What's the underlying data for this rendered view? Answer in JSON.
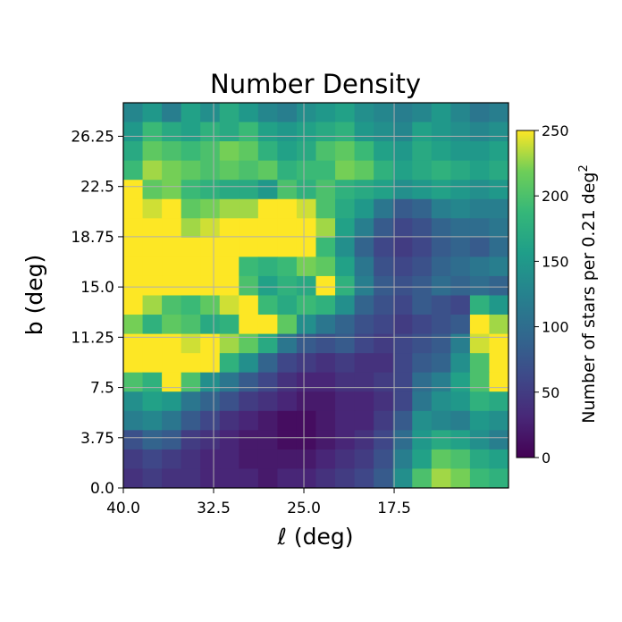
{
  "chart_data": {
    "type": "heatmap",
    "title": "Number Density",
    "xlabel": "ℓ (deg)",
    "ylabel": "b (deg)",
    "xlim": [
      40.0,
      8.0
    ],
    "ylim": [
      0.0,
      28.75
    ],
    "x_ticks": [
      "40.0",
      "32.5",
      "25.0",
      "17.5"
    ],
    "x_tick_values": [
      40.0,
      32.5,
      25.0,
      17.5
    ],
    "y_ticks": [
      "0.0",
      "3.75",
      "7.5",
      "11.25",
      "15.0",
      "18.75",
      "22.5",
      "26.25"
    ],
    "y_tick_values": [
      0.0,
      3.75,
      7.5,
      11.25,
      15.0,
      18.75,
      22.5,
      26.25
    ],
    "grid": true,
    "colormap": "viridis",
    "colorbar": {
      "label": "Number of stars per 0.21 deg",
      "label_superscript": "2",
      "range": [
        0,
        250
      ],
      "ticks": [
        "0",
        "50",
        "100",
        "150",
        "200",
        "250"
      ],
      "tick_values": [
        0,
        50,
        100,
        150,
        200,
        250
      ]
    },
    "grid_x_step": 1.6,
    "grid_y_step": 1.4375,
    "values": [
      [
        130,
        150,
        120,
        160,
        140,
        170,
        150,
        130,
        120,
        140,
        150,
        160,
        140,
        130,
        120,
        130,
        150,
        130,
        110,
        120
      ],
      [
        150,
        190,
        170,
        160,
        180,
        170,
        190,
        160,
        150,
        160,
        170,
        180,
        150,
        140,
        130,
        160,
        150,
        140,
        130,
        140
      ],
      [
        170,
        210,
        200,
        190,
        200,
        220,
        210,
        180,
        160,
        170,
        200,
        210,
        190,
        160,
        150,
        170,
        160,
        150,
        150,
        160
      ],
      [
        190,
        230,
        220,
        210,
        200,
        210,
        200,
        210,
        180,
        190,
        190,
        220,
        210,
        180,
        160,
        170,
        180,
        170,
        160,
        170
      ],
      [
        250,
        210,
        220,
        190,
        180,
        170,
        170,
        150,
        200,
        180,
        200,
        180,
        170,
        160,
        140,
        150,
        160,
        150,
        140,
        150
      ],
      [
        250,
        240,
        250,
        210,
        220,
        230,
        230,
        250,
        250,
        240,
        200,
        170,
        150,
        110,
        80,
        90,
        120,
        130,
        120,
        120
      ],
      [
        250,
        250,
        250,
        230,
        240,
        250,
        250,
        250,
        250,
        250,
        230,
        160,
        120,
        80,
        60,
        70,
        90,
        100,
        100,
        110
      ],
      [
        250,
        250,
        250,
        250,
        250,
        250,
        250,
        250,
        250,
        250,
        190,
        140,
        90,
        60,
        50,
        60,
        80,
        90,
        80,
        100
      ],
      [
        250,
        250,
        250,
        250,
        250,
        250,
        190,
        180,
        190,
        220,
        210,
        160,
        110,
        70,
        60,
        70,
        90,
        100,
        110,
        120
      ],
      [
        250,
        250,
        250,
        250,
        250,
        250,
        200,
        160,
        180,
        170,
        250,
        180,
        120,
        80,
        70,
        80,
        100,
        90,
        100,
        90
      ],
      [
        250,
        230,
        200,
        190,
        210,
        240,
        250,
        190,
        170,
        190,
        180,
        140,
        90,
        70,
        60,
        80,
        70,
        60,
        180,
        150
      ],
      [
        220,
        180,
        210,
        200,
        170,
        180,
        250,
        250,
        210,
        140,
        110,
        90,
        70,
        60,
        50,
        60,
        70,
        80,
        250,
        230
      ],
      [
        250,
        250,
        250,
        240,
        250,
        230,
        210,
        170,
        110,
        80,
        70,
        80,
        60,
        50,
        60,
        70,
        80,
        120,
        240,
        250
      ],
      [
        250,
        250,
        250,
        250,
        250,
        180,
        140,
        90,
        60,
        50,
        40,
        50,
        40,
        40,
        60,
        80,
        90,
        140,
        200,
        250
      ],
      [
        200,
        180,
        250,
        200,
        140,
        110,
        80,
        60,
        40,
        30,
        30,
        40,
        40,
        50,
        60,
        100,
        120,
        160,
        200,
        250
      ],
      [
        140,
        160,
        150,
        110,
        90,
        70,
        50,
        40,
        30,
        20,
        20,
        30,
        30,
        40,
        60,
        110,
        140,
        150,
        180,
        170
      ],
      [
        120,
        130,
        110,
        80,
        60,
        40,
        30,
        20,
        10,
        10,
        20,
        30,
        30,
        50,
        80,
        140,
        130,
        120,
        150,
        140
      ],
      [
        70,
        90,
        80,
        50,
        40,
        30,
        20,
        20,
        10,
        10,
        20,
        30,
        40,
        60,
        100,
        150,
        170,
        160,
        140,
        120
      ],
      [
        50,
        60,
        50,
        40,
        30,
        30,
        20,
        20,
        20,
        20,
        30,
        40,
        50,
        70,
        120,
        160,
        210,
        200,
        170,
        160
      ],
      [
        40,
        50,
        40,
        40,
        30,
        30,
        30,
        20,
        30,
        30,
        40,
        50,
        60,
        80,
        140,
        200,
        230,
        220,
        190,
        180
      ]
    ]
  }
}
